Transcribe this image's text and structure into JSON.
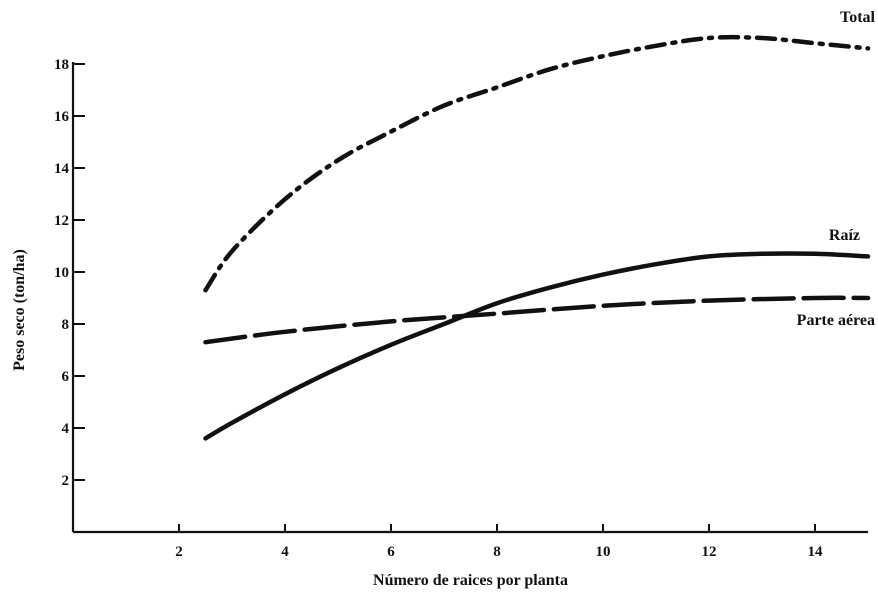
{
  "chart_data": {
    "type": "line",
    "xlabel": "Número de raices por planta",
    "ylabel": "Peso seco (ton/ha)",
    "xlim": [
      0,
      15
    ],
    "ylim": [
      0,
      19
    ],
    "xticks": [
      2,
      4,
      6,
      8,
      10,
      12,
      14
    ],
    "yticks": [
      2,
      4,
      6,
      8,
      10,
      12,
      14,
      16,
      18
    ],
    "grid": false,
    "legend": "labels at right end of each line",
    "series": [
      {
        "name": "Total",
        "style": "dash-dot",
        "x": [
          2.5,
          3,
          4,
          5,
          6,
          7,
          8,
          9,
          10,
          11,
          12,
          13,
          14,
          15
        ],
        "y": [
          9.3,
          10.8,
          12.8,
          14.3,
          15.4,
          16.4,
          17.1,
          17.8,
          18.3,
          18.7,
          19.0,
          19.0,
          18.8,
          18.6
        ]
      },
      {
        "name": "Raíz",
        "style": "solid",
        "x": [
          2.5,
          3,
          4,
          5,
          6,
          7,
          8,
          9,
          10,
          11,
          12,
          13,
          14,
          15
        ],
        "y": [
          3.6,
          4.2,
          5.3,
          6.3,
          7.2,
          8.0,
          8.8,
          9.4,
          9.9,
          10.3,
          10.6,
          10.7,
          10.7,
          10.6
        ]
      },
      {
        "name": "Parte aérea",
        "style": "dashed",
        "x": [
          2.5,
          4,
          6,
          8,
          10,
          12,
          14,
          15
        ],
        "y": [
          7.3,
          7.7,
          8.1,
          8.4,
          8.7,
          8.9,
          9.0,
          9.0
        ]
      }
    ]
  }
}
